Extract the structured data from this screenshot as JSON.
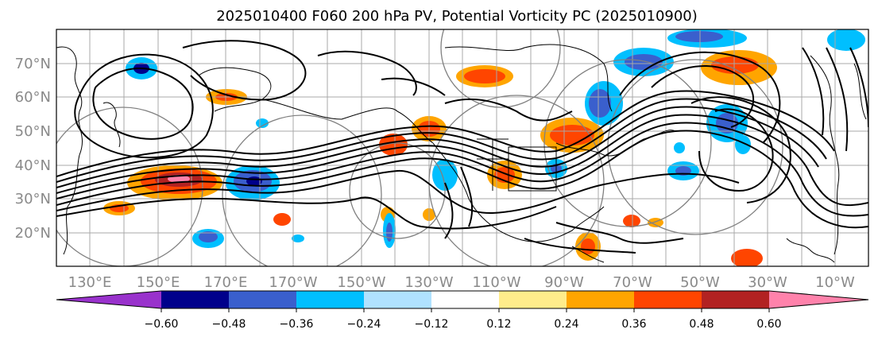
{
  "title": "2025010400 F060 200 hPa PV, Potential Vorticity PC (2025010900)",
  "lat_labels": [
    "70°N",
    "60°N",
    "50°N",
    "40°N",
    "30°N",
    "20°N"
  ],
  "lon_labels": [
    "130°E",
    "150°E",
    "170°E",
    "170°W",
    "150°W",
    "130°W",
    "110°W",
    "90°W",
    "70°W",
    "50°W",
    "30°W",
    "10°W"
  ],
  "colorbar": {
    "ticks": [
      "−0.60",
      "−0.48",
      "−0.36",
      "−0.24",
      "−0.12",
      "0.12",
      "0.24",
      "0.36",
      "0.48",
      "0.60"
    ],
    "colors": [
      "#9932cc",
      "#00008b",
      "#3a5fcd",
      "#00bfff",
      "#b0e2ff",
      "#ffffff",
      "#ffec8b",
      "#ffa500",
      "#ff4500",
      "#b22222",
      "#ff82ab"
    ]
  }
}
